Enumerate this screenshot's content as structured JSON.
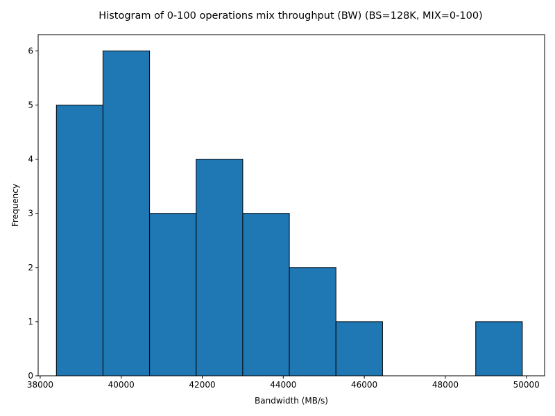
{
  "chart_data": {
    "type": "bar",
    "subtype": "histogram",
    "title": "Histogram of 0-100 operations mix throughput (BW) (BS=128K, MIX=0-100)",
    "xlabel": "Bandwidth (MB/s)",
    "ylabel": "Frequency",
    "xlim": [
      37950,
      50450
    ],
    "ylim": [
      0,
      6.3
    ],
    "xticks": [
      38000,
      40000,
      42000,
      44000,
      46000,
      48000,
      50000
    ],
    "yticks": [
      0,
      1,
      2,
      3,
      4,
      5,
      6
    ],
    "bins": [
      {
        "x0": 38400,
        "x1": 39550,
        "count": 5
      },
      {
        "x0": 39550,
        "x1": 40700,
        "count": 6
      },
      {
        "x0": 40700,
        "x1": 41850,
        "count": 3
      },
      {
        "x0": 41850,
        "x1": 43000,
        "count": 4
      },
      {
        "x0": 43000,
        "x1": 44150,
        "count": 3
      },
      {
        "x0": 44150,
        "x1": 45300,
        "count": 2
      },
      {
        "x0": 45300,
        "x1": 46450,
        "count": 1
      },
      {
        "x0": 46450,
        "x1": 47600,
        "count": 0
      },
      {
        "x0": 47600,
        "x1": 48750,
        "count": 0
      },
      {
        "x0": 48750,
        "x1": 49900,
        "count": 1
      }
    ],
    "bar_color": "#1f77b4",
    "edge_color": "#000000",
    "grid": false,
    "legend": "none"
  }
}
